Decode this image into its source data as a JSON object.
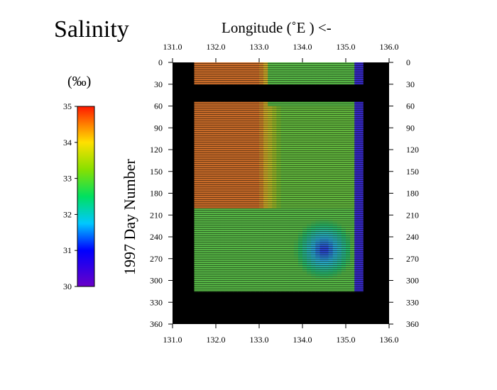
{
  "chart_data": {
    "type": "heatmap",
    "title": "Salinity",
    "xlabel": "Longitude (˚E ) <-",
    "ylabel": "1997 Day Number",
    "colorbar_label": "(‰)",
    "x_ticks": [
      "131.0",
      "132.0",
      "133.0",
      "134.0",
      "135.0",
      "136.0"
    ],
    "y_ticks": [
      "0",
      "30",
      "60",
      "90",
      "120",
      "150",
      "180",
      "210",
      "240",
      "270",
      "300",
      "330",
      "360"
    ],
    "colorbar_ticks": [
      "35",
      "34",
      "33",
      "32",
      "31",
      "30"
    ],
    "xlim": [
      131.0,
      136.0
    ],
    "ylim": [
      0,
      360
    ],
    "colorbar_range": [
      30,
      35
    ],
    "colormap": "rainbow (violet=30, red=35)",
    "no_data_color": "#000000",
    "grid": false,
    "data_coverage": {
      "longitude_range": [
        131.5,
        135.3
      ],
      "day_gaps": [
        [
          0,
          0
        ],
        [
          30,
          52
        ],
        [
          313,
          360
        ]
      ]
    },
    "regions": [
      {
        "name": "high-salinity core",
        "lon": [
          131.6,
          133.0
        ],
        "days": [
          0,
          180
        ],
        "salinity": 34.6
      },
      {
        "name": "eastern band",
        "lon": [
          133.5,
          135.3
        ],
        "days": [
          0,
          200
        ],
        "salinity": 33.0
      },
      {
        "name": "low-salinity patch",
        "lon": [
          134.0,
          135.0
        ],
        "days": [
          225,
          290
        ],
        "salinity": 31.0
      },
      {
        "name": "late-year western",
        "lon": [
          131.5,
          133.5
        ],
        "days": [
          200,
          313
        ],
        "salinity": 32.9
      }
    ]
  }
}
